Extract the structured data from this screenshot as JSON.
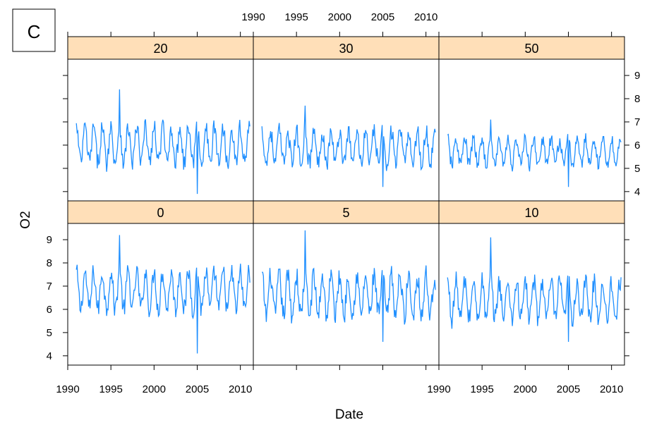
{
  "figure_label": "C",
  "chart_data": {
    "type": "line",
    "layout": "lattice",
    "xlabel": "Date",
    "ylabel": "O2",
    "xlim": [
      1990,
      2011.5
    ],
    "ylim": [
      3.6,
      9.7
    ],
    "x_ticks": [
      1990,
      1995,
      2000,
      2005,
      2010
    ],
    "y_ticks": [
      4,
      5,
      6,
      7,
      8,
      9
    ],
    "line_color": "#1f8fff",
    "strip_color": "#ffdfb8",
    "panels": [
      {
        "label": "0",
        "row": "bottom",
        "col": 0,
        "x_range": [
          1991.0,
          2011.1
        ],
        "mean": 6.8,
        "amplitude": 0.8,
        "min": 4.1,
        "max": 9.2
      },
      {
        "label": "5",
        "row": "bottom",
        "col": 1,
        "x_range": [
          1991.0,
          2011.1
        ],
        "mean": 6.6,
        "amplitude": 0.85,
        "min": 4.6,
        "max": 9.4
      },
      {
        "label": "10",
        "row": "bottom",
        "col": 2,
        "x_range": [
          1991.0,
          2011.1
        ],
        "mean": 6.4,
        "amplitude": 0.8,
        "min": 4.6,
        "max": 9.1
      },
      {
        "label": "20",
        "row": "top",
        "col": 0,
        "x_range": [
          1991.0,
          2011.1
        ],
        "mean": 6.0,
        "amplitude": 0.75,
        "min": 3.9,
        "max": 8.4
      },
      {
        "label": "30",
        "row": "top",
        "col": 1,
        "x_range": [
          1991.0,
          2011.1
        ],
        "mean": 5.9,
        "amplitude": 0.7,
        "min": 4.2,
        "max": 7.7
      },
      {
        "label": "50",
        "row": "top",
        "col": 2,
        "x_range": [
          1991.0,
          2011.1
        ],
        "mean": 5.7,
        "amplitude": 0.55,
        "min": 4.2,
        "max": 7.1
      }
    ]
  }
}
